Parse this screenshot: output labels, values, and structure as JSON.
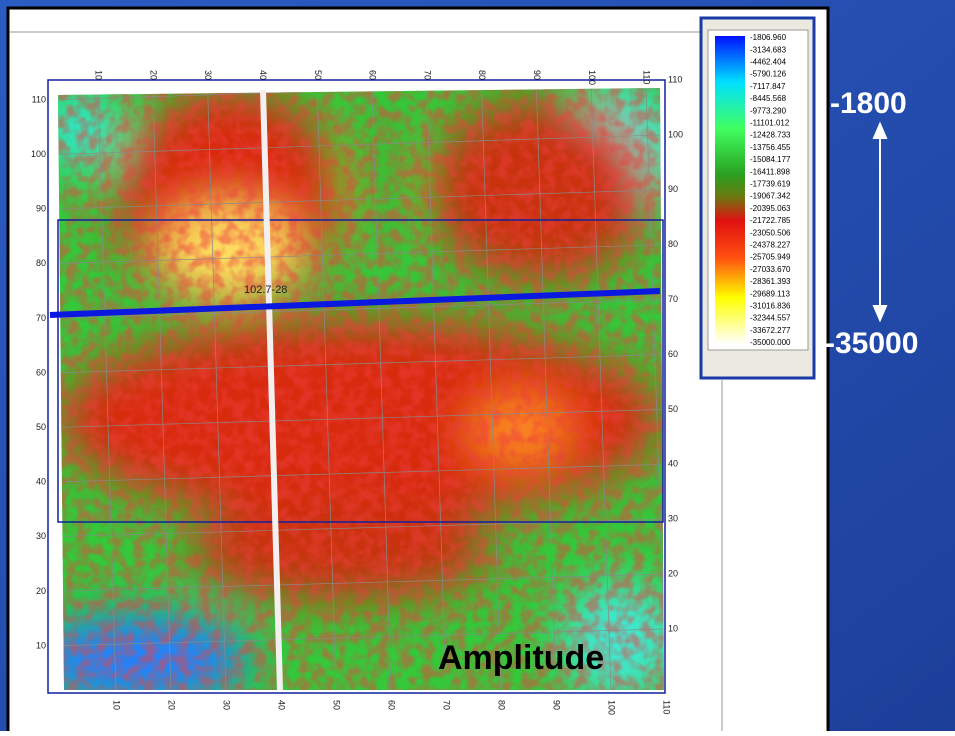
{
  "legend": {
    "labels": [
      "-1806.960",
      "-3134.683",
      "-4462.404",
      "-5790.126",
      "-7117.847",
      "-8445.568",
      "-9773.290",
      "-11101.012",
      "-12428.733",
      "-13756.455",
      "-15084.177",
      "-16411.898",
      "-17739.619",
      "-19067.342",
      "-20395.063",
      "-21722.785",
      "-23050.506",
      "-24378.227",
      "-25705.949",
      "-27033.670",
      "-28361.393",
      "-29689.113",
      "-31016.836",
      "-32344.557",
      "-33672.277",
      "-35000.000"
    ]
  },
  "grid_labels": [
    10,
    20,
    30,
    40,
    50,
    60,
    70,
    80,
    90,
    100,
    110
  ],
  "annotations": {
    "max": "-1800",
    "min": "-35000",
    "map_label": "Amplitude",
    "line_label": "102.7-28"
  }
}
